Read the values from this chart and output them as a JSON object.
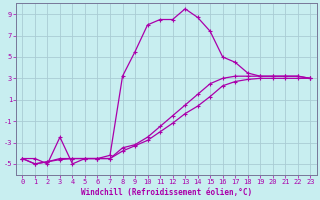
{
  "xlabel": "Windchill (Refroidissement éolien,°C)",
  "bg_color": "#c8eef0",
  "grid_color": "#aaccd4",
  "line_color": "#aa00aa",
  "xlim": [
    -0.5,
    23.5
  ],
  "ylim": [
    -6,
    10
  ],
  "xticks": [
    0,
    1,
    2,
    3,
    4,
    5,
    6,
    7,
    8,
    9,
    10,
    11,
    12,
    13,
    14,
    15,
    16,
    17,
    18,
    19,
    20,
    21,
    22,
    23
  ],
  "yticks": [
    -5,
    -3,
    -1,
    1,
    3,
    5,
    7,
    9
  ],
  "series": [
    [
      -4.5,
      -4.5,
      -5.0,
      -2.5,
      -5.0,
      -4.5,
      -4.5,
      -4.2,
      3.2,
      5.5,
      8.0,
      8.5,
      8.5,
      9.5,
      8.7,
      7.4,
      5.0,
      4.5,
      3.5,
      3.2,
      3.2,
      3.2,
      3.2,
      3.0
    ],
    [
      -4.5,
      -5.0,
      -4.8,
      -4.5,
      -4.5,
      -4.5,
      -4.5,
      -4.5,
      -3.5,
      -3.2,
      -2.5,
      -1.5,
      -0.5,
      0.5,
      1.5,
      2.5,
      3.0,
      3.2,
      3.2,
      3.2,
      3.2,
      3.2,
      3.2,
      3.0
    ],
    [
      -4.5,
      -5.0,
      -4.8,
      -4.6,
      -4.5,
      -4.5,
      -4.5,
      -4.5,
      -3.8,
      -3.3,
      -2.8,
      -2.0,
      -1.2,
      -0.3,
      0.4,
      1.3,
      2.3,
      2.7,
      2.9,
      3.0,
      3.0,
      3.0,
      3.0,
      3.0
    ]
  ],
  "tick_fontsize": 5,
  "xlabel_fontsize": 5.5,
  "marker_size": 3,
  "linewidth": 0.9
}
